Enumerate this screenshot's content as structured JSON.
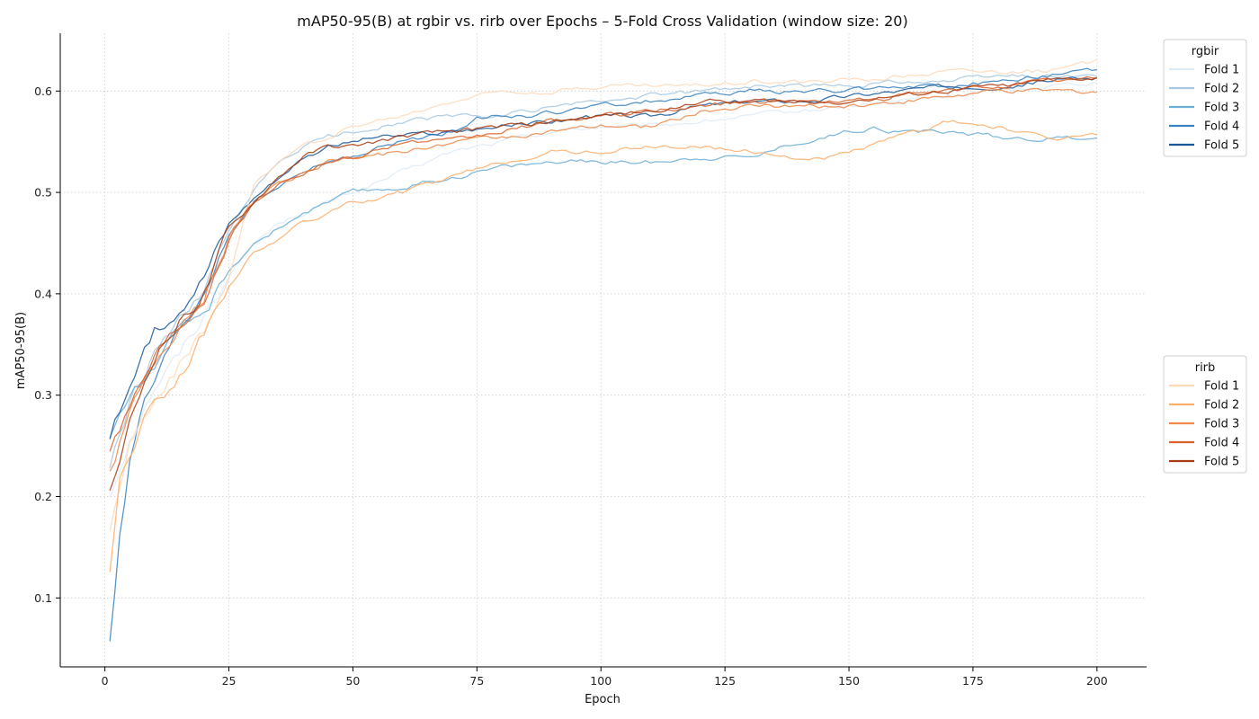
{
  "chart_data": {
    "type": "line",
    "title": "mAP50-95(B) at rgbir vs. rirb over Epochs – 5-Fold Cross Validation (window size: 20)",
    "xlabel": "Epoch",
    "ylabel": "mAP50-95(B)",
    "xlim": [
      -9,
      210
    ],
    "ylim": [
      0.032,
      0.657
    ],
    "xticks": [
      0,
      25,
      50,
      75,
      100,
      125,
      150,
      175,
      200
    ],
    "yticks": [
      0.1,
      0.2,
      0.3,
      0.4,
      0.5,
      0.6
    ],
    "ytick_labels": [
      "0.1",
      "0.2",
      "0.3",
      "0.4",
      "0.5",
      "0.6"
    ],
    "grid": true,
    "legends": [
      {
        "title": "rgbir",
        "placement": "right-top"
      },
      {
        "title": "rirb",
        "placement": "right-middle"
      }
    ],
    "series": [
      {
        "name": "Fold 1",
        "group": "rgbir",
        "color": "#deebf7",
        "anchors": [
          [
            1,
            0.2
          ],
          [
            5,
            0.26
          ],
          [
            10,
            0.31
          ],
          [
            15,
            0.34
          ],
          [
            20,
            0.38
          ],
          [
            25,
            0.42
          ],
          [
            30,
            0.45
          ],
          [
            35,
            0.47
          ],
          [
            40,
            0.48
          ],
          [
            50,
            0.5
          ],
          [
            60,
            0.52
          ],
          [
            70,
            0.54
          ],
          [
            80,
            0.55
          ],
          [
            90,
            0.56
          ],
          [
            100,
            0.565
          ],
          [
            110,
            0.565
          ],
          [
            120,
            0.57
          ],
          [
            130,
            0.575
          ],
          [
            140,
            0.58
          ],
          [
            150,
            0.585
          ],
          [
            160,
            0.59
          ],
          [
            170,
            0.595
          ],
          [
            180,
            0.6
          ],
          [
            190,
            0.605
          ],
          [
            200,
            0.61
          ]
        ]
      },
      {
        "name": "Fold 2",
        "group": "rgbir",
        "color": "#a6c8e2",
        "anchors": [
          [
            1,
            0.23
          ],
          [
            5,
            0.29
          ],
          [
            10,
            0.34
          ],
          [
            15,
            0.37
          ],
          [
            20,
            0.4
          ],
          [
            25,
            0.46
          ],
          [
            30,
            0.5
          ],
          [
            35,
            0.53
          ],
          [
            40,
            0.545
          ],
          [
            45,
            0.555
          ],
          [
            50,
            0.56
          ],
          [
            60,
            0.57
          ],
          [
            70,
            0.575
          ],
          [
            80,
            0.575
          ],
          [
            90,
            0.585
          ],
          [
            100,
            0.59
          ],
          [
            110,
            0.595
          ],
          [
            120,
            0.6
          ],
          [
            130,
            0.605
          ],
          [
            140,
            0.605
          ],
          [
            150,
            0.605
          ],
          [
            160,
            0.61
          ],
          [
            170,
            0.61
          ],
          [
            180,
            0.615
          ],
          [
            190,
            0.615
          ],
          [
            200,
            0.615
          ]
        ]
      },
      {
        "name": "Fold 3",
        "group": "rgbir",
        "color": "#6baed6",
        "anchors": [
          [
            1,
            0.26
          ],
          [
            5,
            0.3
          ],
          [
            10,
            0.33
          ],
          [
            15,
            0.36
          ],
          [
            20,
            0.38
          ],
          [
            25,
            0.42
          ],
          [
            30,
            0.45
          ],
          [
            35,
            0.465
          ],
          [
            40,
            0.48
          ],
          [
            50,
            0.5
          ],
          [
            60,
            0.505
          ],
          [
            70,
            0.515
          ],
          [
            80,
            0.525
          ],
          [
            90,
            0.53
          ],
          [
            100,
            0.53
          ],
          [
            110,
            0.53
          ],
          [
            120,
            0.535
          ],
          [
            130,
            0.535
          ],
          [
            140,
            0.55
          ],
          [
            150,
            0.56
          ],
          [
            155,
            0.565
          ],
          [
            160,
            0.56
          ],
          [
            170,
            0.56
          ],
          [
            180,
            0.555
          ],
          [
            190,
            0.553
          ],
          [
            200,
            0.555
          ]
        ]
      },
      {
        "name": "Fold 4",
        "group": "rgbir",
        "color": "#3a82c0",
        "anchors": [
          [
            1,
            0.06
          ],
          [
            3,
            0.16
          ],
          [
            5,
            0.23
          ],
          [
            8,
            0.29
          ],
          [
            12,
            0.33
          ],
          [
            15,
            0.36
          ],
          [
            20,
            0.4
          ],
          [
            25,
            0.46
          ],
          [
            30,
            0.49
          ],
          [
            35,
            0.505
          ],
          [
            40,
            0.52
          ],
          [
            45,
            0.53
          ],
          [
            50,
            0.535
          ],
          [
            60,
            0.55
          ],
          [
            70,
            0.56
          ],
          [
            75,
            0.575
          ],
          [
            85,
            0.575
          ],
          [
            100,
            0.585
          ],
          [
            110,
            0.59
          ],
          [
            120,
            0.595
          ],
          [
            130,
            0.6
          ],
          [
            140,
            0.6
          ],
          [
            150,
            0.6
          ],
          [
            160,
            0.605
          ],
          [
            170,
            0.605
          ],
          [
            180,
            0.61
          ],
          [
            190,
            0.615
          ],
          [
            200,
            0.62
          ]
        ]
      },
      {
        "name": "Fold 5",
        "group": "rgbir",
        "color": "#1b5a9a",
        "anchors": [
          [
            1,
            0.26
          ],
          [
            5,
            0.31
          ],
          [
            10,
            0.36
          ],
          [
            15,
            0.39
          ],
          [
            20,
            0.42
          ],
          [
            25,
            0.47
          ],
          [
            30,
            0.495
          ],
          [
            35,
            0.515
          ],
          [
            40,
            0.535
          ],
          [
            45,
            0.545
          ],
          [
            50,
            0.55
          ],
          [
            55,
            0.555
          ],
          [
            60,
            0.555
          ],
          [
            70,
            0.56
          ],
          [
            80,
            0.565
          ],
          [
            90,
            0.57
          ],
          [
            100,
            0.575
          ],
          [
            110,
            0.575
          ],
          [
            120,
            0.585
          ],
          [
            130,
            0.59
          ],
          [
            140,
            0.59
          ],
          [
            150,
            0.595
          ],
          [
            160,
            0.6
          ],
          [
            170,
            0.605
          ],
          [
            180,
            0.605
          ],
          [
            190,
            0.61
          ],
          [
            200,
            0.613
          ]
        ]
      },
      {
        "name": "Fold 1",
        "group": "rirb",
        "color": "#fdd9b8",
        "anchors": [
          [
            1,
            0.17
          ],
          [
            5,
            0.25
          ],
          [
            10,
            0.3
          ],
          [
            15,
            0.33
          ],
          [
            20,
            0.36
          ],
          [
            25,
            0.42
          ],
          [
            30,
            0.51
          ],
          [
            35,
            0.53
          ],
          [
            40,
            0.545
          ],
          [
            45,
            0.555
          ],
          [
            50,
            0.565
          ],
          [
            60,
            0.575
          ],
          [
            70,
            0.59
          ],
          [
            80,
            0.6
          ],
          [
            90,
            0.6
          ],
          [
            100,
            0.605
          ],
          [
            110,
            0.605
          ],
          [
            120,
            0.605
          ],
          [
            130,
            0.61
          ],
          [
            140,
            0.61
          ],
          [
            150,
            0.61
          ],
          [
            160,
            0.615
          ],
          [
            170,
            0.62
          ],
          [
            180,
            0.62
          ],
          [
            190,
            0.62
          ],
          [
            200,
            0.628
          ]
        ]
      },
      {
        "name": "Fold 2",
        "group": "rirb",
        "color": "#fdae6b",
        "anchors": [
          [
            1,
            0.13
          ],
          [
            3,
            0.22
          ],
          [
            5,
            0.24
          ],
          [
            8,
            0.28
          ],
          [
            12,
            0.3
          ],
          [
            15,
            0.32
          ],
          [
            20,
            0.36
          ],
          [
            25,
            0.41
          ],
          [
            30,
            0.44
          ],
          [
            35,
            0.455
          ],
          [
            40,
            0.47
          ],
          [
            50,
            0.49
          ],
          [
            60,
            0.5
          ],
          [
            70,
            0.515
          ],
          [
            80,
            0.53
          ],
          [
            90,
            0.54
          ],
          [
            100,
            0.54
          ],
          [
            110,
            0.545
          ],
          [
            120,
            0.545
          ],
          [
            130,
            0.54
          ],
          [
            140,
            0.535
          ],
          [
            145,
            0.532
          ],
          [
            150,
            0.54
          ],
          [
            160,
            0.555
          ],
          [
            170,
            0.57
          ],
          [
            180,
            0.565
          ],
          [
            190,
            0.552
          ],
          [
            200,
            0.557
          ]
        ]
      },
      {
        "name": "Fold 3",
        "group": "rirb",
        "color": "#f08a4a",
        "anchors": [
          [
            1,
            0.23
          ],
          [
            5,
            0.28
          ],
          [
            10,
            0.33
          ],
          [
            15,
            0.37
          ],
          [
            20,
            0.4
          ],
          [
            25,
            0.46
          ],
          [
            30,
            0.49
          ],
          [
            35,
            0.51
          ],
          [
            40,
            0.52
          ],
          [
            45,
            0.53
          ],
          [
            50,
            0.535
          ],
          [
            60,
            0.54
          ],
          [
            70,
            0.55
          ],
          [
            80,
            0.555
          ],
          [
            90,
            0.56
          ],
          [
            100,
            0.565
          ],
          [
            110,
            0.565
          ],
          [
            120,
            0.58
          ],
          [
            130,
            0.585
          ],
          [
            140,
            0.585
          ],
          [
            150,
            0.585
          ],
          [
            160,
            0.59
          ],
          [
            170,
            0.595
          ],
          [
            180,
            0.6
          ],
          [
            190,
            0.6
          ],
          [
            200,
            0.6
          ]
        ]
      },
      {
        "name": "Fold 4",
        "group": "rirb",
        "color": "#d8632a",
        "anchors": [
          [
            1,
            0.25
          ],
          [
            5,
            0.29
          ],
          [
            10,
            0.34
          ],
          [
            15,
            0.37
          ],
          [
            20,
            0.4
          ],
          [
            25,
            0.46
          ],
          [
            30,
            0.49
          ],
          [
            35,
            0.51
          ],
          [
            40,
            0.52
          ],
          [
            45,
            0.53
          ],
          [
            50,
            0.535
          ],
          [
            60,
            0.55
          ],
          [
            70,
            0.55
          ],
          [
            80,
            0.56
          ],
          [
            90,
            0.57
          ],
          [
            100,
            0.575
          ],
          [
            110,
            0.58
          ],
          [
            120,
            0.585
          ],
          [
            130,
            0.59
          ],
          [
            140,
            0.59
          ],
          [
            150,
            0.59
          ],
          [
            160,
            0.595
          ],
          [
            170,
            0.6
          ],
          [
            180,
            0.605
          ],
          [
            190,
            0.61
          ],
          [
            200,
            0.612
          ]
        ]
      },
      {
        "name": "Fold 5",
        "group": "rirb",
        "color": "#a83c10",
        "anchors": [
          [
            1,
            0.2
          ],
          [
            5,
            0.27
          ],
          [
            10,
            0.34
          ],
          [
            15,
            0.37
          ],
          [
            20,
            0.4
          ],
          [
            25,
            0.46
          ],
          [
            30,
            0.49
          ],
          [
            35,
            0.515
          ],
          [
            40,
            0.535
          ],
          [
            45,
            0.545
          ],
          [
            50,
            0.545
          ],
          [
            55,
            0.55
          ],
          [
            60,
            0.555
          ],
          [
            70,
            0.56
          ],
          [
            80,
            0.565
          ],
          [
            90,
            0.57
          ],
          [
            100,
            0.575
          ],
          [
            110,
            0.58
          ],
          [
            120,
            0.59
          ],
          [
            130,
            0.59
          ],
          [
            140,
            0.59
          ],
          [
            150,
            0.59
          ],
          [
            160,
            0.595
          ],
          [
            170,
            0.6
          ],
          [
            180,
            0.605
          ],
          [
            190,
            0.61
          ],
          [
            200,
            0.613
          ]
        ]
      }
    ]
  }
}
